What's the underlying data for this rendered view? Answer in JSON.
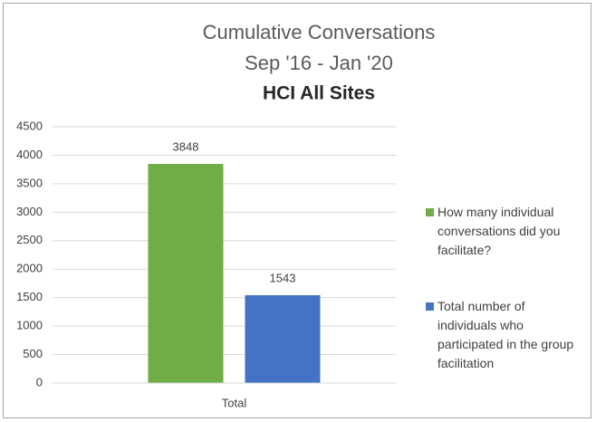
{
  "chart_data": {
    "type": "bar",
    "title": [
      "Cumulative Conversations",
      "Sep '16 - Jan '20",
      "HCI All Sites"
    ],
    "categories": [
      "Total"
    ],
    "series": [
      {
        "name": "How many individual conversations did you facilitate?",
        "color": "#70ad47",
        "values": [
          3848
        ]
      },
      {
        "name": "Total number of individuals who participated in the group facilitation",
        "color": "#4472c4",
        "values": [
          1543
        ]
      }
    ],
    "ylim": [
      0,
      4500
    ],
    "yticks": [
      0,
      500,
      1000,
      1500,
      2000,
      2500,
      3000,
      3500,
      4000,
      4500
    ],
    "grid": true,
    "legend": "right"
  }
}
